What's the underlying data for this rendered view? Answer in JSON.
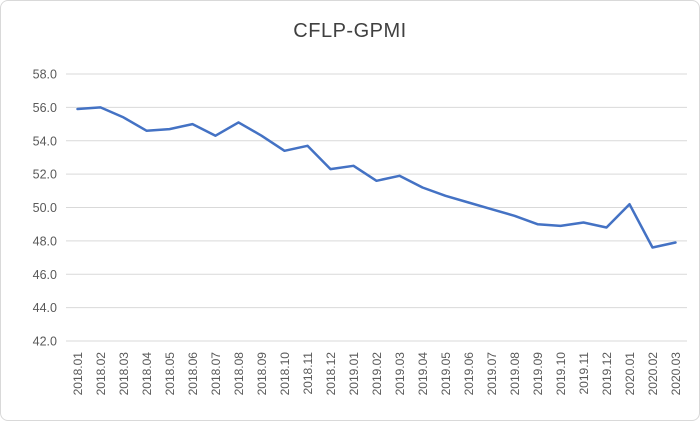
{
  "window": {
    "background_color": "#ffffff",
    "frame_border_color": "#d9d9d9"
  },
  "chart_data": {
    "type": "line",
    "title": "CFLP-GPMI",
    "xlabel": "",
    "ylabel": "",
    "categories": [
      "2018.01",
      "2018.02",
      "2018.03",
      "2018.04",
      "2018.05",
      "2018.06",
      "2018.07",
      "2018.08",
      "2018.09",
      "2018.10",
      "2018.11",
      "2018.12",
      "2019.01",
      "2019.02",
      "2019.03",
      "2019.04",
      "2019.05",
      "2019.06",
      "2019.07",
      "2019.08",
      "2019.09",
      "2019.10",
      "2019.11",
      "2019.12",
      "2020.01",
      "2020.02",
      "2020.03"
    ],
    "values": [
      55.9,
      56.0,
      55.4,
      54.6,
      54.7,
      55.0,
      54.3,
      55.1,
      54.3,
      53.4,
      53.7,
      52.3,
      52.5,
      51.6,
      51.9,
      51.2,
      50.7,
      50.3,
      49.9,
      49.5,
      49.0,
      48.9,
      49.1,
      48.8,
      50.2,
      47.6,
      47.9
    ],
    "ylim": [
      42.0,
      58.0
    ],
    "ytick_step": 2.0,
    "ytick_labels": [
      "58.0",
      "56.0",
      "54.0",
      "52.0",
      "50.0",
      "48.0",
      "46.0",
      "44.0",
      "42.0"
    ],
    "x_tick_rotation_degrees": 90,
    "grid": "horizontal",
    "legend": "none",
    "series_name": "CFLP-GPMI",
    "series_color": "#4472C4",
    "series_stroke_width": 2.5,
    "gridline_color": "#d9d9d9",
    "axis_text_color": "#595959",
    "title_color": "#404040"
  }
}
